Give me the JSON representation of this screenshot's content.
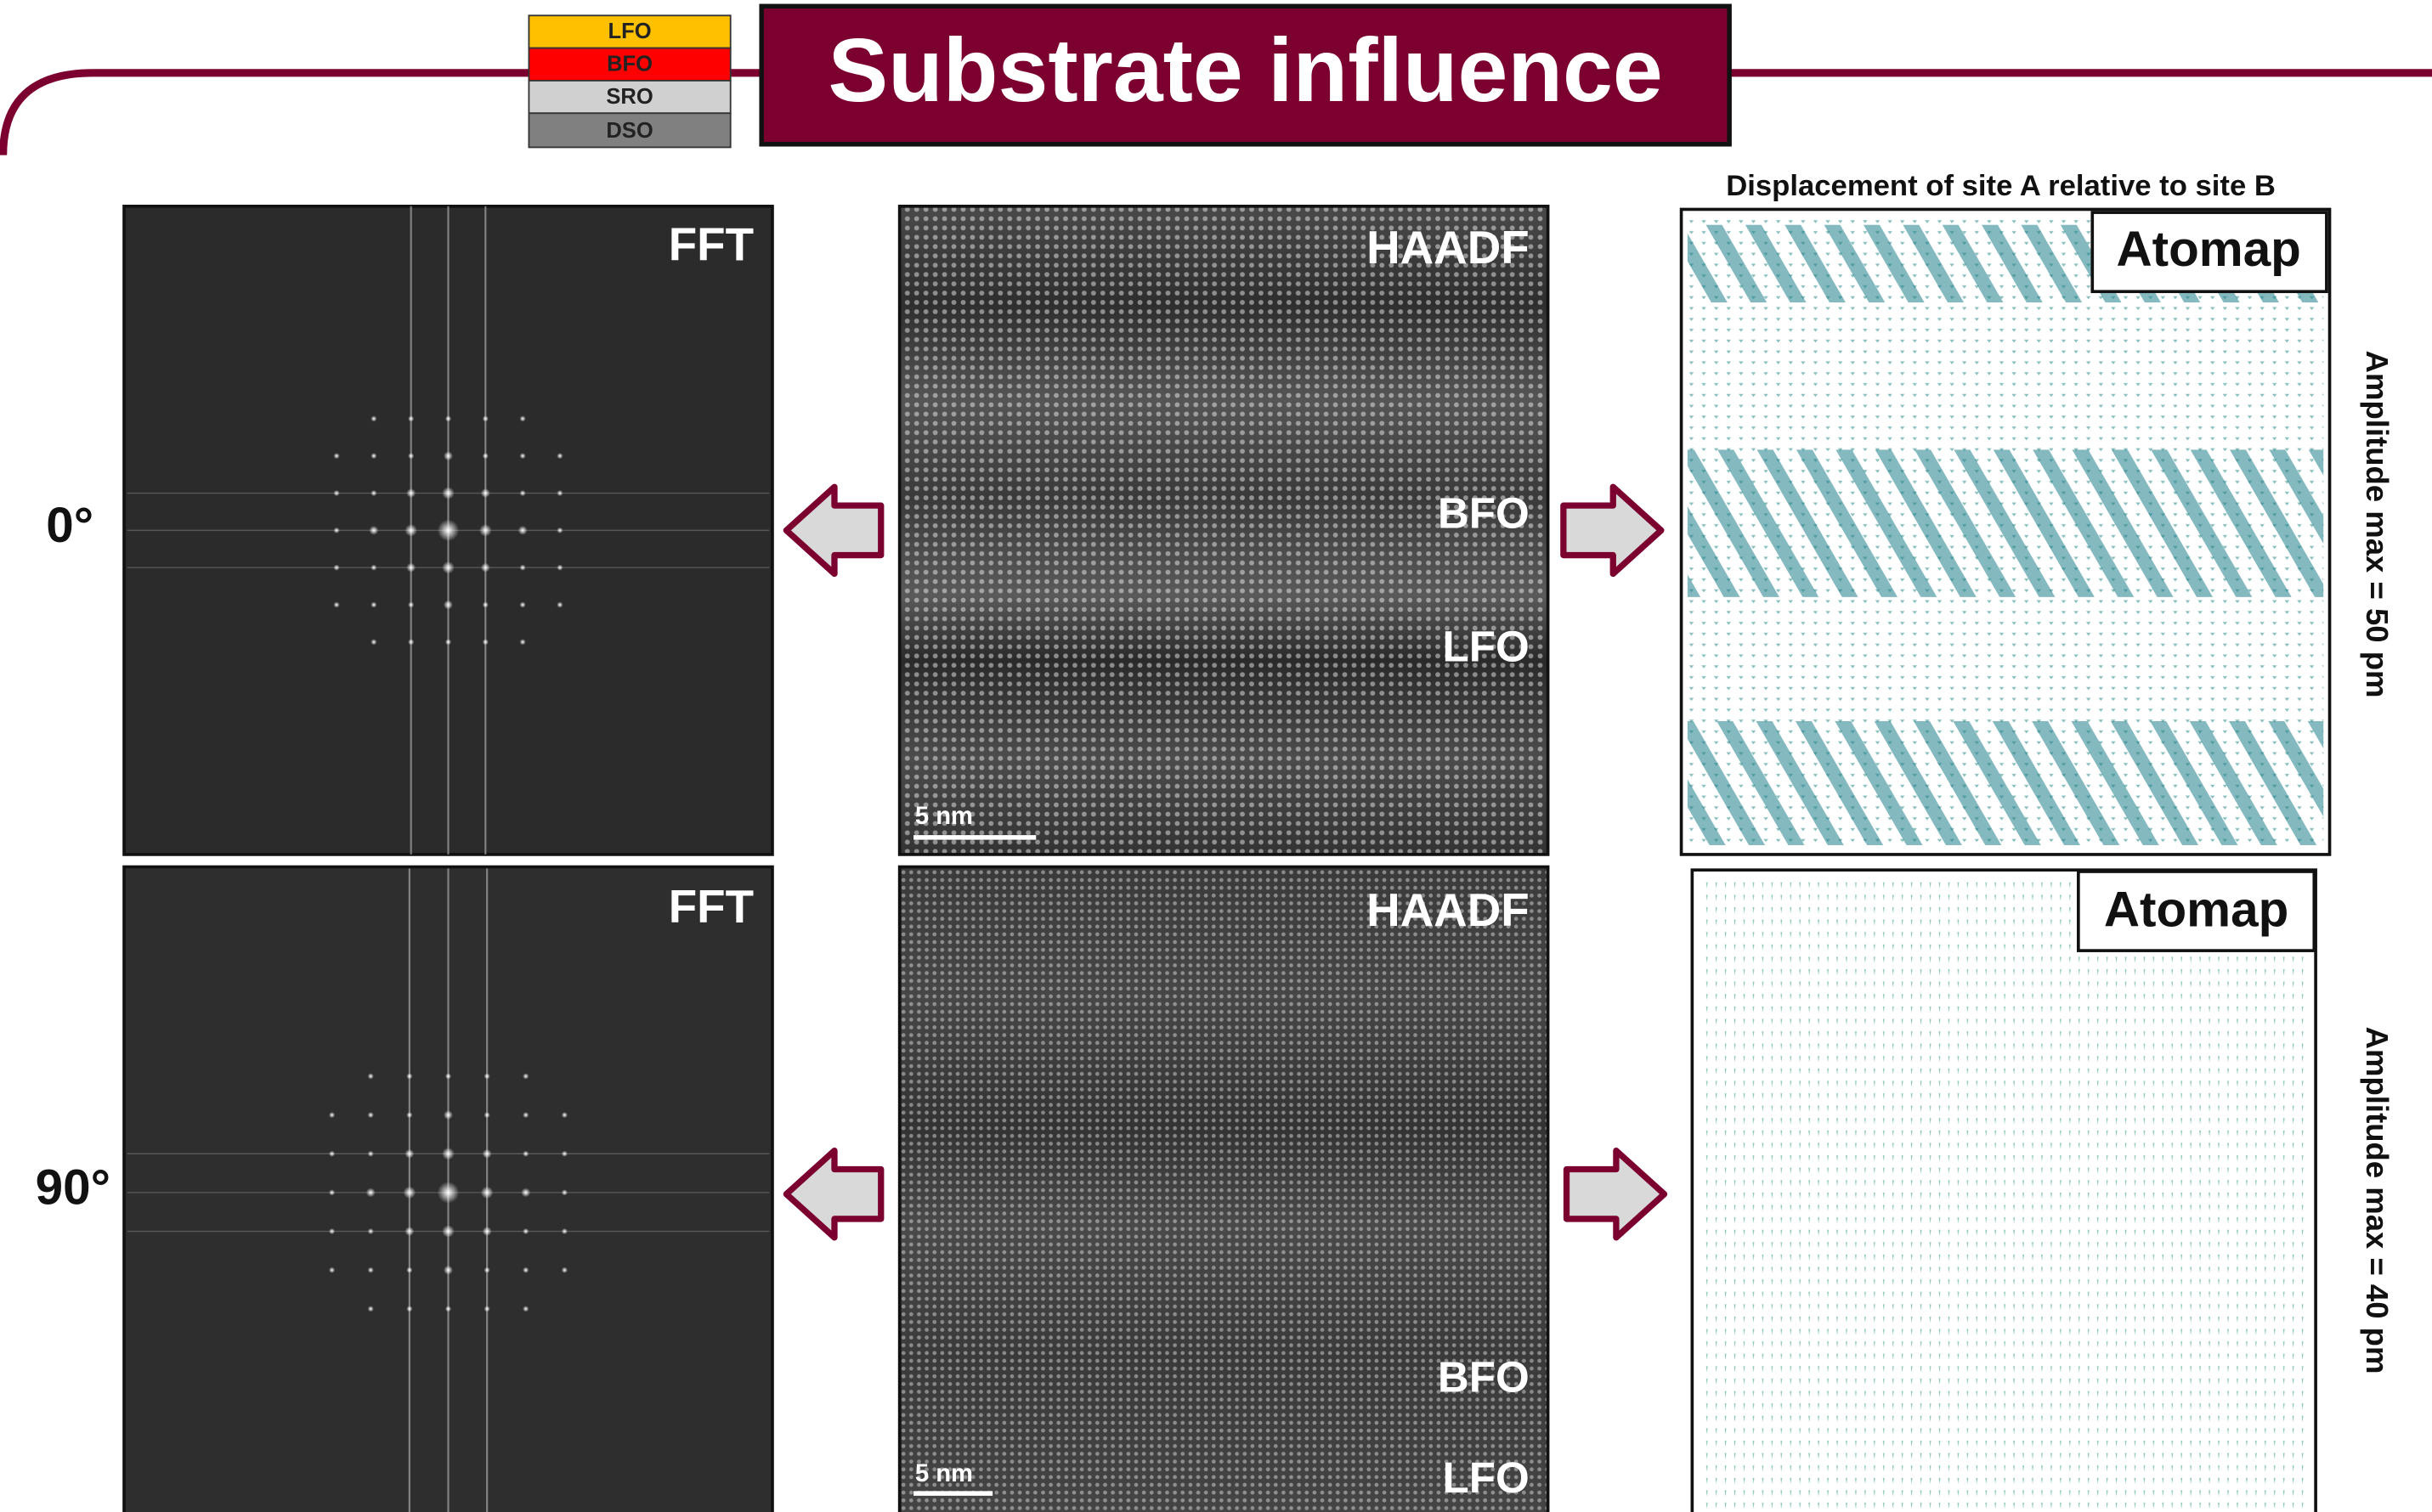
{
  "header": {
    "title": "Substrate influence",
    "stack": [
      "LFO",
      "BFO",
      "SRO",
      "DSO"
    ]
  },
  "caption": "Displacement of site A relative to site B",
  "rows": [
    {
      "angle": "0°",
      "fft": "FFT",
      "haadf": "HAADF",
      "scale": "5 nm",
      "layers": [
        "BFO",
        "LFO"
      ],
      "atomap": "Atomap",
      "amplitude": "Amplitude max = 50 pm"
    },
    {
      "angle": "90°",
      "fft": "FFT",
      "haadf": "HAADF",
      "scale": "5 nm",
      "layers": [
        "BFO",
        "LFO"
      ],
      "atomap": "Atomap",
      "amplitude": "Amplitude max = 40 pm"
    }
  ]
}
